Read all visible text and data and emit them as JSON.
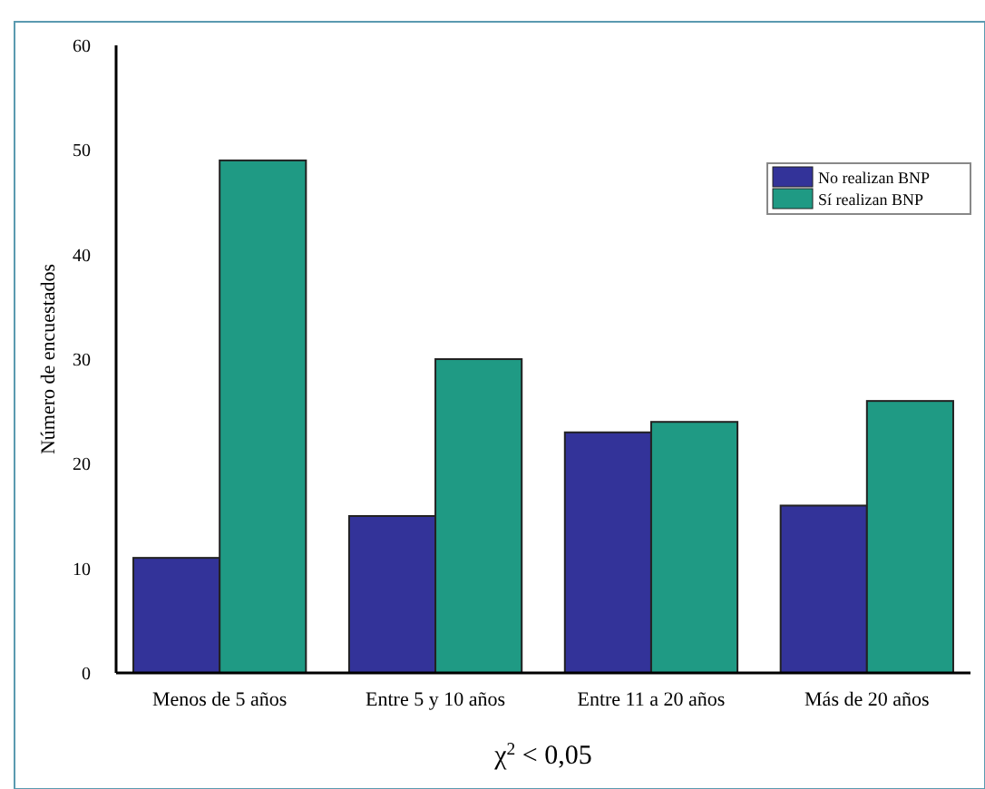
{
  "chart_data": {
    "type": "bar",
    "xlabel": "χ$^{2}$ < 0,05",
    "ylabel": "Número de encuestados",
    "categories": [
      "Menos de 5 años",
      "Entre 5 y 10 años",
      "Entre 11 a 20 años",
      "Más de 20 años"
    ],
    "series": [
      {
        "name": "No realizan BNP",
        "color": "#333399",
        "values": [
          11,
          15,
          23,
          16
        ]
      },
      {
        "name": "Sí realizan BNP",
        "color": "#1f9a84",
        "values": [
          49,
          30,
          24,
          26
        ]
      }
    ],
    "ylim": [
      0,
      60
    ],
    "yticks": [
      0,
      10,
      20,
      30,
      40,
      50,
      60
    ],
    "grid": false,
    "legend": "top right"
  }
}
